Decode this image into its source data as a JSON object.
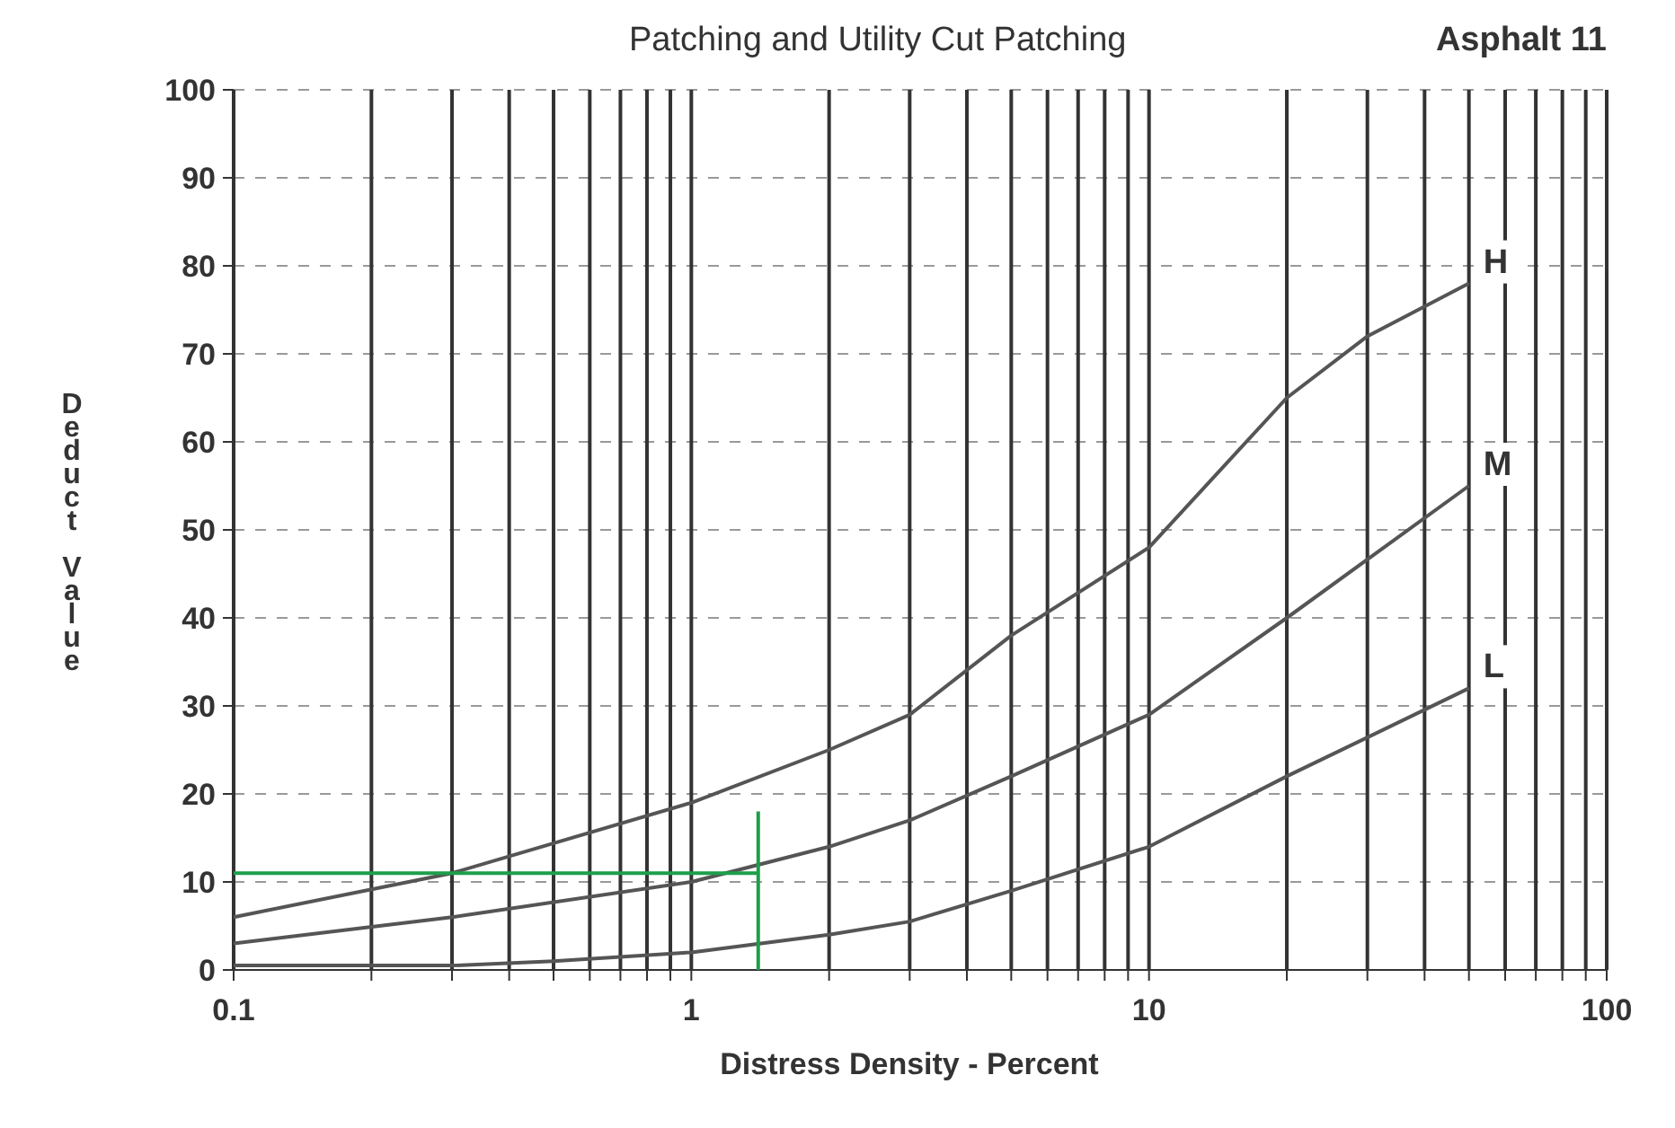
{
  "chart_data": {
    "type": "line",
    "title": "Patching and Utility Cut Patching",
    "subtitle": "Asphalt 11",
    "xlabel": "Distress Density - Percent",
    "ylabel": "Deduct Value",
    "log": "x",
    "grid": true,
    "marker": "none",
    "line_style": "solid",
    "xlim": [
      0.1,
      100
    ],
    "ylim": [
      0,
      100
    ],
    "xticks": [
      0.1,
      {
        "value": 0.2,
        "label": null
      },
      {
        "value": 0.3,
        "label": null
      },
      {
        "value": 0.4,
        "label": null
      },
      {
        "value": 0.5,
        "label": null
      },
      {
        "value": 0.6,
        "label": null
      },
      {
        "value": 0.7,
        "label": null
      },
      {
        "value": 0.8,
        "label": null
      },
      {
        "value": 0.9,
        "label": null
      },
      1,
      {
        "value": 2,
        "label": null
      },
      {
        "value": 3,
        "label": null
      },
      {
        "value": 4,
        "label": null
      },
      {
        "value": 5,
        "label": null
      },
      {
        "value": 6,
        "label": null
      },
      {
        "value": 7,
        "label": null
      },
      {
        "value": 8,
        "label": null
      },
      {
        "value": 9,
        "label": null
      },
      10,
      {
        "value": 20,
        "label": null
      },
      {
        "value": 30,
        "label": null
      },
      {
        "value": 40,
        "label": null
      },
      {
        "value": 50,
        "label": null
      },
      {
        "value": 60,
        "label": null
      },
      {
        "value": 70,
        "label": null
      },
      {
        "value": 80,
        "label": null
      },
      {
        "value": 90,
        "label": null
      },
      100
    ],
    "yticks": [
      0,
      10,
      20,
      30,
      40,
      50,
      60,
      70,
      80,
      90,
      100
    ],
    "series": [
      {
        "name": "H",
        "color": "#555555",
        "x": [
          0.1,
          0.3,
          1,
          2,
          3,
          5,
          10,
          20,
          30,
          50
        ],
        "values": [
          6,
          11,
          19,
          25,
          29,
          38,
          48,
          65,
          72,
          78
        ]
      },
      {
        "name": "M",
        "color": "#555555",
        "x": [
          0.1,
          0.3,
          1,
          2,
          3,
          5,
          10,
          20,
          50
        ],
        "values": [
          3,
          6,
          10,
          14,
          17,
          22,
          29,
          40,
          55
        ]
      },
      {
        "name": "L",
        "color": "#555555",
        "x": [
          0.1,
          0.3,
          0.5,
          1,
          2,
          3,
          5,
          10,
          20,
          50
        ],
        "values": [
          0.5,
          0.5,
          1,
          2,
          4,
          5.5,
          9,
          14,
          22,
          32
        ]
      },
      {
        "color": "#1e9e4a",
        "x": [
          0.1,
          1.4
        ],
        "values": [
          11,
          11
        ]
      },
      {
        "color": "#1e9e4a",
        "x": [
          1.4,
          1.4
        ],
        "values": [
          0,
          18
        ]
      }
    ]
  }
}
